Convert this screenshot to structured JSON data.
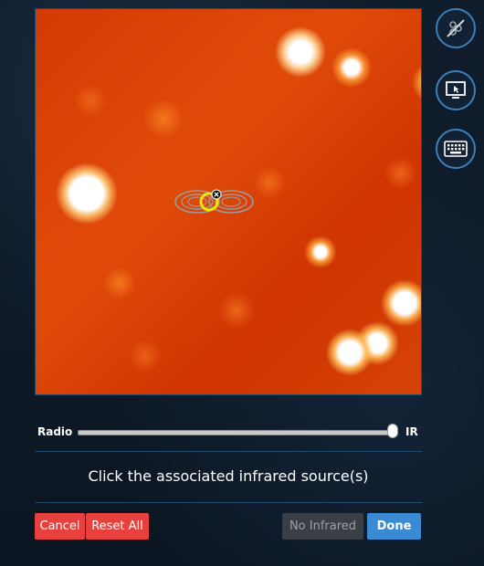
{
  "toolbar": {
    "hide_markings_icon": "markings-hidden-icon",
    "screen_icon": "screen-pointer-icon",
    "keyboard_icon": "keyboard-icon"
  },
  "slider": {
    "left_label": "Radio",
    "right_label": "IR",
    "value": 0.99
  },
  "instruction": "Click the associated infrared source(s)",
  "buttons": {
    "cancel": "Cancel",
    "reset_all": "Reset All",
    "no_infrared": "No Infrared",
    "done": "Done"
  },
  "colors": {
    "accent": "#3a8bd4",
    "danger": "#e8403d",
    "marker": "#f2e600",
    "contour": "#9a9a9a"
  }
}
